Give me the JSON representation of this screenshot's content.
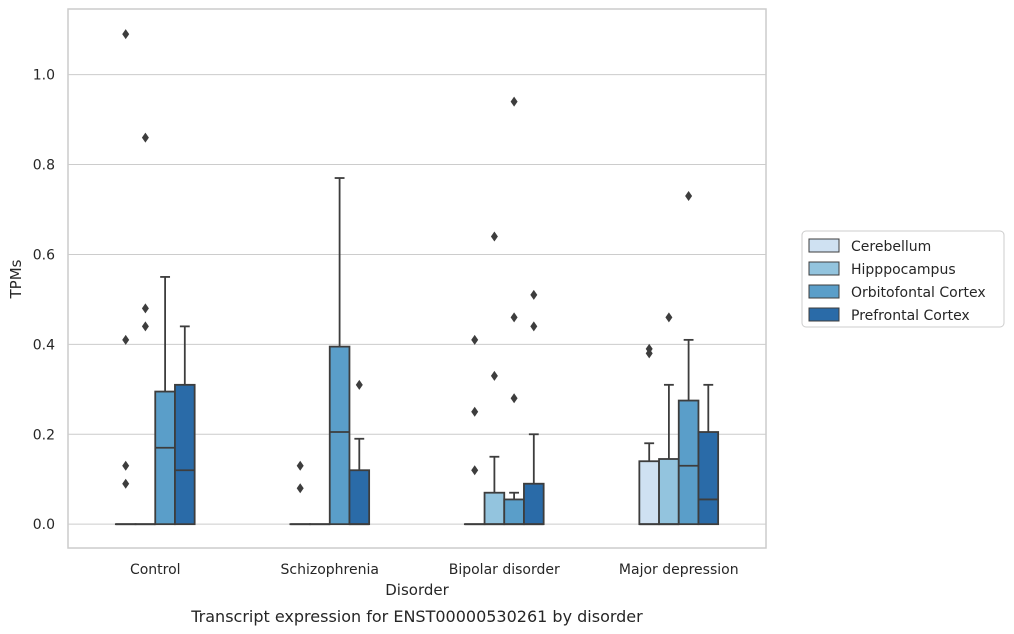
{
  "chart_data": {
    "type": "box",
    "title": "",
    "caption": "Transcript expression for ENST00000530261 by disorder",
    "xlabel": "Disorder",
    "ylabel": "TPMs",
    "ylim": [
      -0.053,
      1.146
    ],
    "yticks": [
      "0.0",
      "0.2",
      "0.4",
      "0.6",
      "0.8",
      "1.0"
    ],
    "grid": true,
    "legend_position": "right",
    "categories": [
      "Control",
      "Schizophrenia",
      "Bipolar disorder",
      "Major depression"
    ],
    "series": [
      {
        "name": "Cerebellum",
        "color": "#cfe1f2",
        "boxes": [
          {
            "q1": 0,
            "median": 0,
            "q3": 0,
            "whisker_low": 0,
            "whisker_high": 0,
            "outliers": [
              0.09,
              0.13,
              0.41,
              1.09
            ]
          },
          {
            "q1": 0,
            "median": 0,
            "q3": 0,
            "whisker_low": 0,
            "whisker_high": 0,
            "outliers": [
              0.08,
              0.13
            ]
          },
          {
            "q1": 0,
            "median": 0,
            "q3": 0,
            "whisker_low": 0,
            "whisker_high": 0,
            "outliers": [
              0.12,
              0.25,
              0.41
            ]
          },
          {
            "q1": 0,
            "median": 0,
            "q3": 0.14,
            "whisker_low": 0,
            "whisker_high": 0.18,
            "outliers": [
              0.38,
              0.39
            ]
          }
        ]
      },
      {
        "name": "Hipppocampus",
        "color": "#93c4de",
        "boxes": [
          {
            "q1": 0,
            "median": 0,
            "q3": 0,
            "whisker_low": 0,
            "whisker_high": 0,
            "outliers": [
              0.44,
              0.48,
              0.86
            ]
          },
          {
            "q1": 0,
            "median": 0,
            "q3": 0,
            "whisker_low": 0,
            "whisker_high": 0,
            "outliers": []
          },
          {
            "q1": 0,
            "median": 0,
            "q3": 0.07,
            "whisker_low": 0,
            "whisker_high": 0.15,
            "outliers": [
              0.33,
              0.64
            ]
          },
          {
            "q1": 0,
            "median": 0,
            "q3": 0.145,
            "whisker_low": 0,
            "whisker_high": 0.31,
            "outliers": [
              0.46
            ]
          }
        ]
      },
      {
        "name": "Orbitofontal Cortex",
        "color": "#5a9ec9",
        "boxes": [
          {
            "q1": 0,
            "median": 0.17,
            "q3": 0.295,
            "whisker_low": 0,
            "whisker_high": 0.55,
            "outliers": []
          },
          {
            "q1": 0,
            "median": 0.205,
            "q3": 0.395,
            "whisker_low": 0,
            "whisker_high": 0.77,
            "outliers": []
          },
          {
            "q1": 0,
            "median": 0,
            "q3": 0.055,
            "whisker_low": 0,
            "whisker_high": 0.07,
            "outliers": [
              0.28,
              0.46,
              0.94
            ]
          },
          {
            "q1": 0,
            "median": 0.13,
            "q3": 0.275,
            "whisker_low": 0,
            "whisker_high": 0.41,
            "outliers": [
              0.73
            ]
          }
        ]
      },
      {
        "name": "Prefrontal Cortex",
        "color": "#2a6ba8",
        "boxes": [
          {
            "q1": 0,
            "median": 0.12,
            "q3": 0.31,
            "whisker_low": 0,
            "whisker_high": 0.44,
            "outliers": []
          },
          {
            "q1": 0,
            "median": 0,
            "q3": 0.12,
            "whisker_low": 0,
            "whisker_high": 0.19,
            "outliers": [
              0.31
            ]
          },
          {
            "q1": 0,
            "median": 0,
            "q3": 0.09,
            "whisker_low": 0,
            "whisker_high": 0.2,
            "outliers": [
              0.44,
              0.51
            ]
          },
          {
            "q1": 0,
            "median": 0.055,
            "q3": 0.205,
            "whisker_low": 0,
            "whisker_high": 0.31,
            "outliers": []
          }
        ]
      }
    ]
  }
}
